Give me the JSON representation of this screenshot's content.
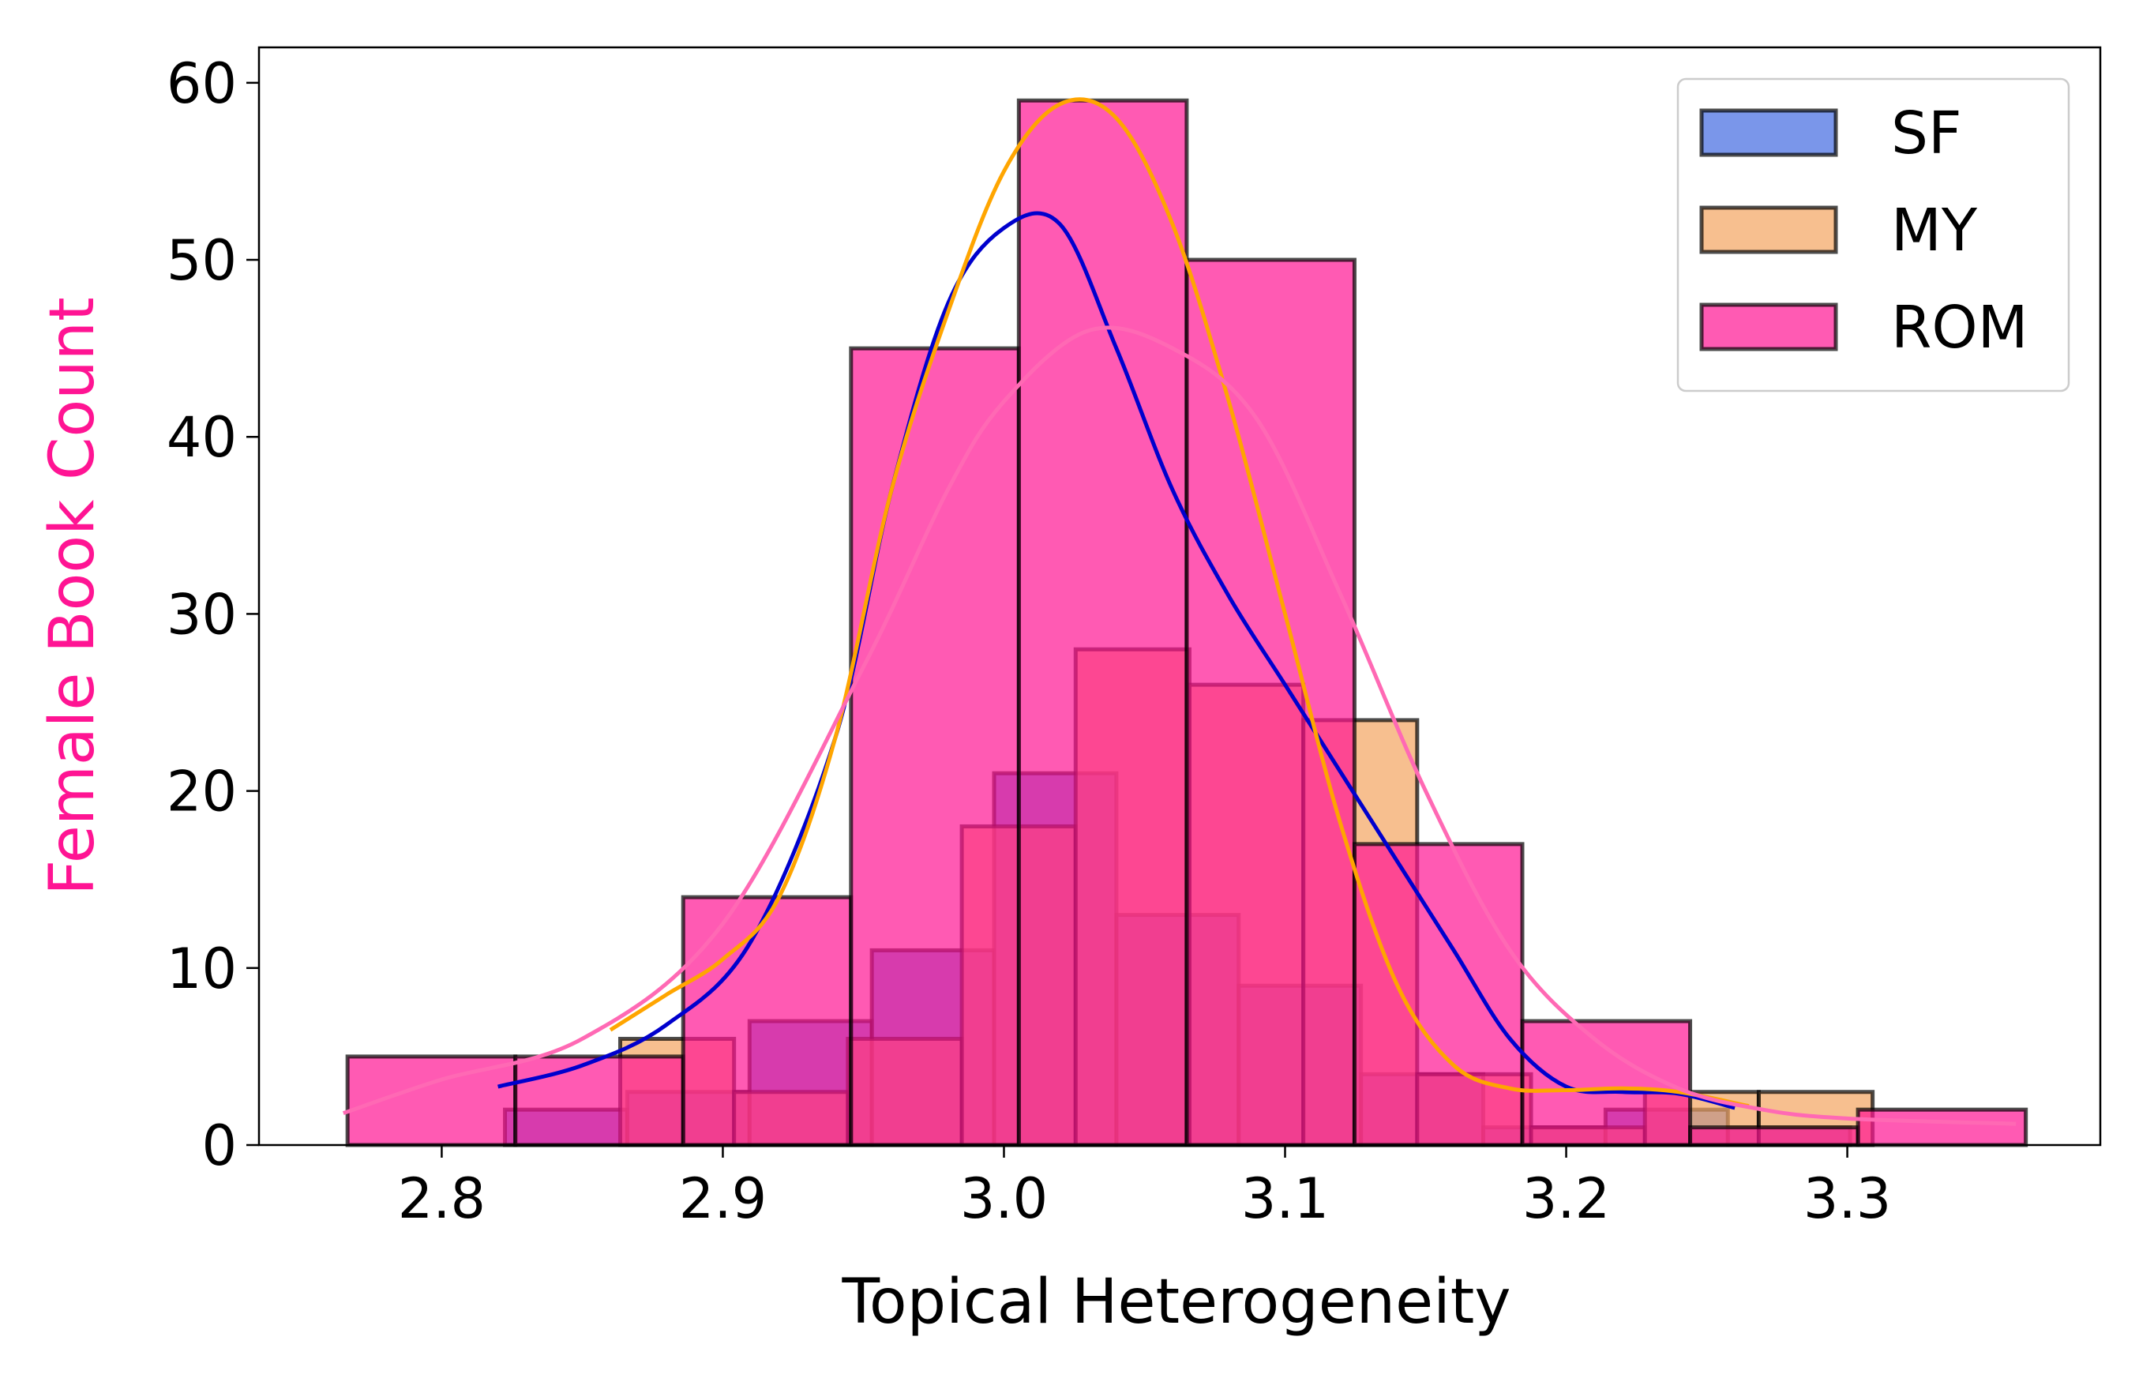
{
  "chart_data": {
    "type": "bar",
    "subtype": "histogram-with-kde",
    "xlabel": "Topical Heterogeneity",
    "ylabel": "Female Book Count",
    "ylabel_color": "#ff1493",
    "xlim": [
      2.735,
      3.39
    ],
    "ylim": [
      0,
      62
    ],
    "xticks": [
      2.8,
      2.9,
      3.0,
      3.1,
      3.2,
      3.3
    ],
    "xtick_labels": [
      "2.8",
      "2.9",
      "3.0",
      "3.1",
      "3.2",
      "3.3"
    ],
    "yticks": [
      0,
      10,
      20,
      30,
      40,
      50,
      60
    ],
    "ytick_labels": [
      "0",
      "10",
      "20",
      "30",
      "40",
      "50",
      "60"
    ],
    "legend_position": "top-right",
    "series": [
      {
        "name": "SF",
        "fill": "#4169e1",
        "line": "#0000cd",
        "bin_start": 2.8225,
        "bin_width": 0.0435,
        "counts": [
          2,
          3,
          7,
          11,
          21,
          13,
          9,
          4,
          1,
          2,
          1
        ],
        "kde": [
          [
            2.82,
            3.3
          ],
          [
            2.85,
            4.5
          ],
          [
            2.88,
            6.8
          ],
          [
            2.91,
            11.5
          ],
          [
            2.94,
            23
          ],
          [
            2.96,
            37
          ],
          [
            2.98,
            47.5
          ],
          [
            3.0,
            51.8
          ],
          [
            3.02,
            52
          ],
          [
            3.04,
            45
          ],
          [
            3.06,
            37
          ],
          [
            3.08,
            31
          ],
          [
            3.1,
            26
          ],
          [
            3.12,
            21
          ],
          [
            3.14,
            16
          ],
          [
            3.16,
            11
          ],
          [
            3.18,
            6
          ],
          [
            3.2,
            3.3
          ],
          [
            3.22,
            3
          ],
          [
            3.24,
            2.9
          ],
          [
            3.26,
            2.1
          ]
        ]
      },
      {
        "name": "MY",
        "fill": "#f4a460",
        "line": "#ffa500",
        "bin_start": 2.8635,
        "bin_width": 0.0405,
        "counts": [
          6,
          3,
          6,
          18,
          28,
          26,
          24,
          4,
          1,
          3,
          3
        ],
        "kde": [
          [
            2.86,
            6.5
          ],
          [
            2.88,
            8.5
          ],
          [
            2.9,
            10.5
          ],
          [
            2.92,
            14
          ],
          [
            2.94,
            23
          ],
          [
            2.96,
            37
          ],
          [
            2.98,
            47
          ],
          [
            3.0,
            55
          ],
          [
            3.02,
            58.8
          ],
          [
            3.04,
            58
          ],
          [
            3.06,
            52
          ],
          [
            3.08,
            42
          ],
          [
            3.1,
            30
          ],
          [
            3.12,
            18
          ],
          [
            3.14,
            9
          ],
          [
            3.16,
            4.5
          ],
          [
            3.18,
            3.2
          ],
          [
            3.2,
            3.1
          ],
          [
            3.22,
            3.2
          ],
          [
            3.24,
            3.0
          ],
          [
            3.265,
            2.2
          ]
        ]
      },
      {
        "name": "ROM",
        "fill": "#ff1493",
        "line": "#ff69b4",
        "bin_start": 2.7665,
        "bin_width": 0.0597,
        "counts": [
          5,
          5,
          14,
          45,
          59,
          50,
          17,
          7,
          1,
          2
        ],
        "kde": [
          [
            2.765,
            1.8
          ],
          [
            2.8,
            3.7
          ],
          [
            2.85,
            6
          ],
          [
            2.9,
            12.5
          ],
          [
            2.95,
            27
          ],
          [
            2.98,
            37
          ],
          [
            3.0,
            42
          ],
          [
            3.03,
            46
          ],
          [
            3.06,
            45
          ],
          [
            3.09,
            41
          ],
          [
            3.12,
            31
          ],
          [
            3.15,
            20
          ],
          [
            3.18,
            11
          ],
          [
            3.21,
            6
          ],
          [
            3.24,
            3.2
          ],
          [
            3.27,
            2
          ],
          [
            3.3,
            1.5
          ],
          [
            3.36,
            1.2
          ]
        ]
      }
    ]
  }
}
